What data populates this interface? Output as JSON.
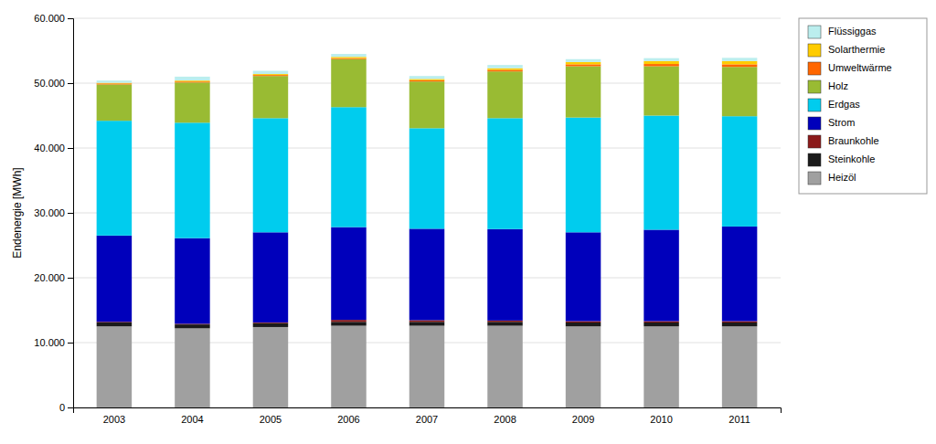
{
  "chart_data": {
    "type": "bar",
    "stacked": true,
    "categories": [
      "2003",
      "2004",
      "2005",
      "2006",
      "2007",
      "2008",
      "2009",
      "2010",
      "2011"
    ],
    "series": [
      {
        "name": "Heizöl",
        "color": "#A0A0A0",
        "values": [
          12500,
          12200,
          12400,
          12600,
          12600,
          12600,
          12500,
          12500,
          12500
        ]
      },
      {
        "name": "Steinkohle",
        "color": "#1A1A1A",
        "values": [
          600,
          600,
          600,
          600,
          600,
          600,
          600,
          600,
          600
        ]
      },
      {
        "name": "Braunkohle",
        "color": "#8B1A1A",
        "values": [
          100,
          100,
          100,
          300,
          250,
          200,
          200,
          200,
          200
        ]
      },
      {
        "name": "Strom",
        "color": "#0000BB",
        "values": [
          13300,
          13200,
          13900,
          14300,
          14100,
          14100,
          13700,
          14100,
          14600
        ]
      },
      {
        "name": "Erdgas",
        "color": "#00CCEE",
        "values": [
          17700,
          17800,
          17600,
          18500,
          15500,
          17100,
          17700,
          17600,
          17000
        ]
      },
      {
        "name": "Holz",
        "color": "#99BB33",
        "values": [
          5600,
          6200,
          6500,
          7400,
          7200,
          7200,
          7900,
          7600,
          7600
        ]
      },
      {
        "name": "Umweltwärme",
        "color": "#FF6600",
        "values": [
          150,
          150,
          150,
          150,
          200,
          250,
          300,
          350,
          400
        ]
      },
      {
        "name": "Solarthermie",
        "color": "#FFCC00",
        "values": [
          100,
          150,
          150,
          200,
          200,
          250,
          350,
          450,
          500
        ]
      },
      {
        "name": "Flüssiggas",
        "color": "#BBEEEE",
        "values": [
          350,
          600,
          500,
          450,
          450,
          500,
          450,
          450,
          500
        ]
      }
    ],
    "ylabel": "Endenergie [MWh]",
    "ylim": [
      0,
      60000
    ],
    "yticks": [
      0,
      {
        "value": 10000,
        "label": "10.000"
      },
      {
        "value": 20000,
        "label": "20.000"
      },
      {
        "value": 30000,
        "label": "30.000"
      },
      {
        "value": 40000,
        "label": "40.000"
      },
      {
        "value": 50000,
        "label": "50.000"
      },
      {
        "value": 60000,
        "label": "60.000"
      }
    ],
    "grid": true,
    "legend": "right"
  }
}
